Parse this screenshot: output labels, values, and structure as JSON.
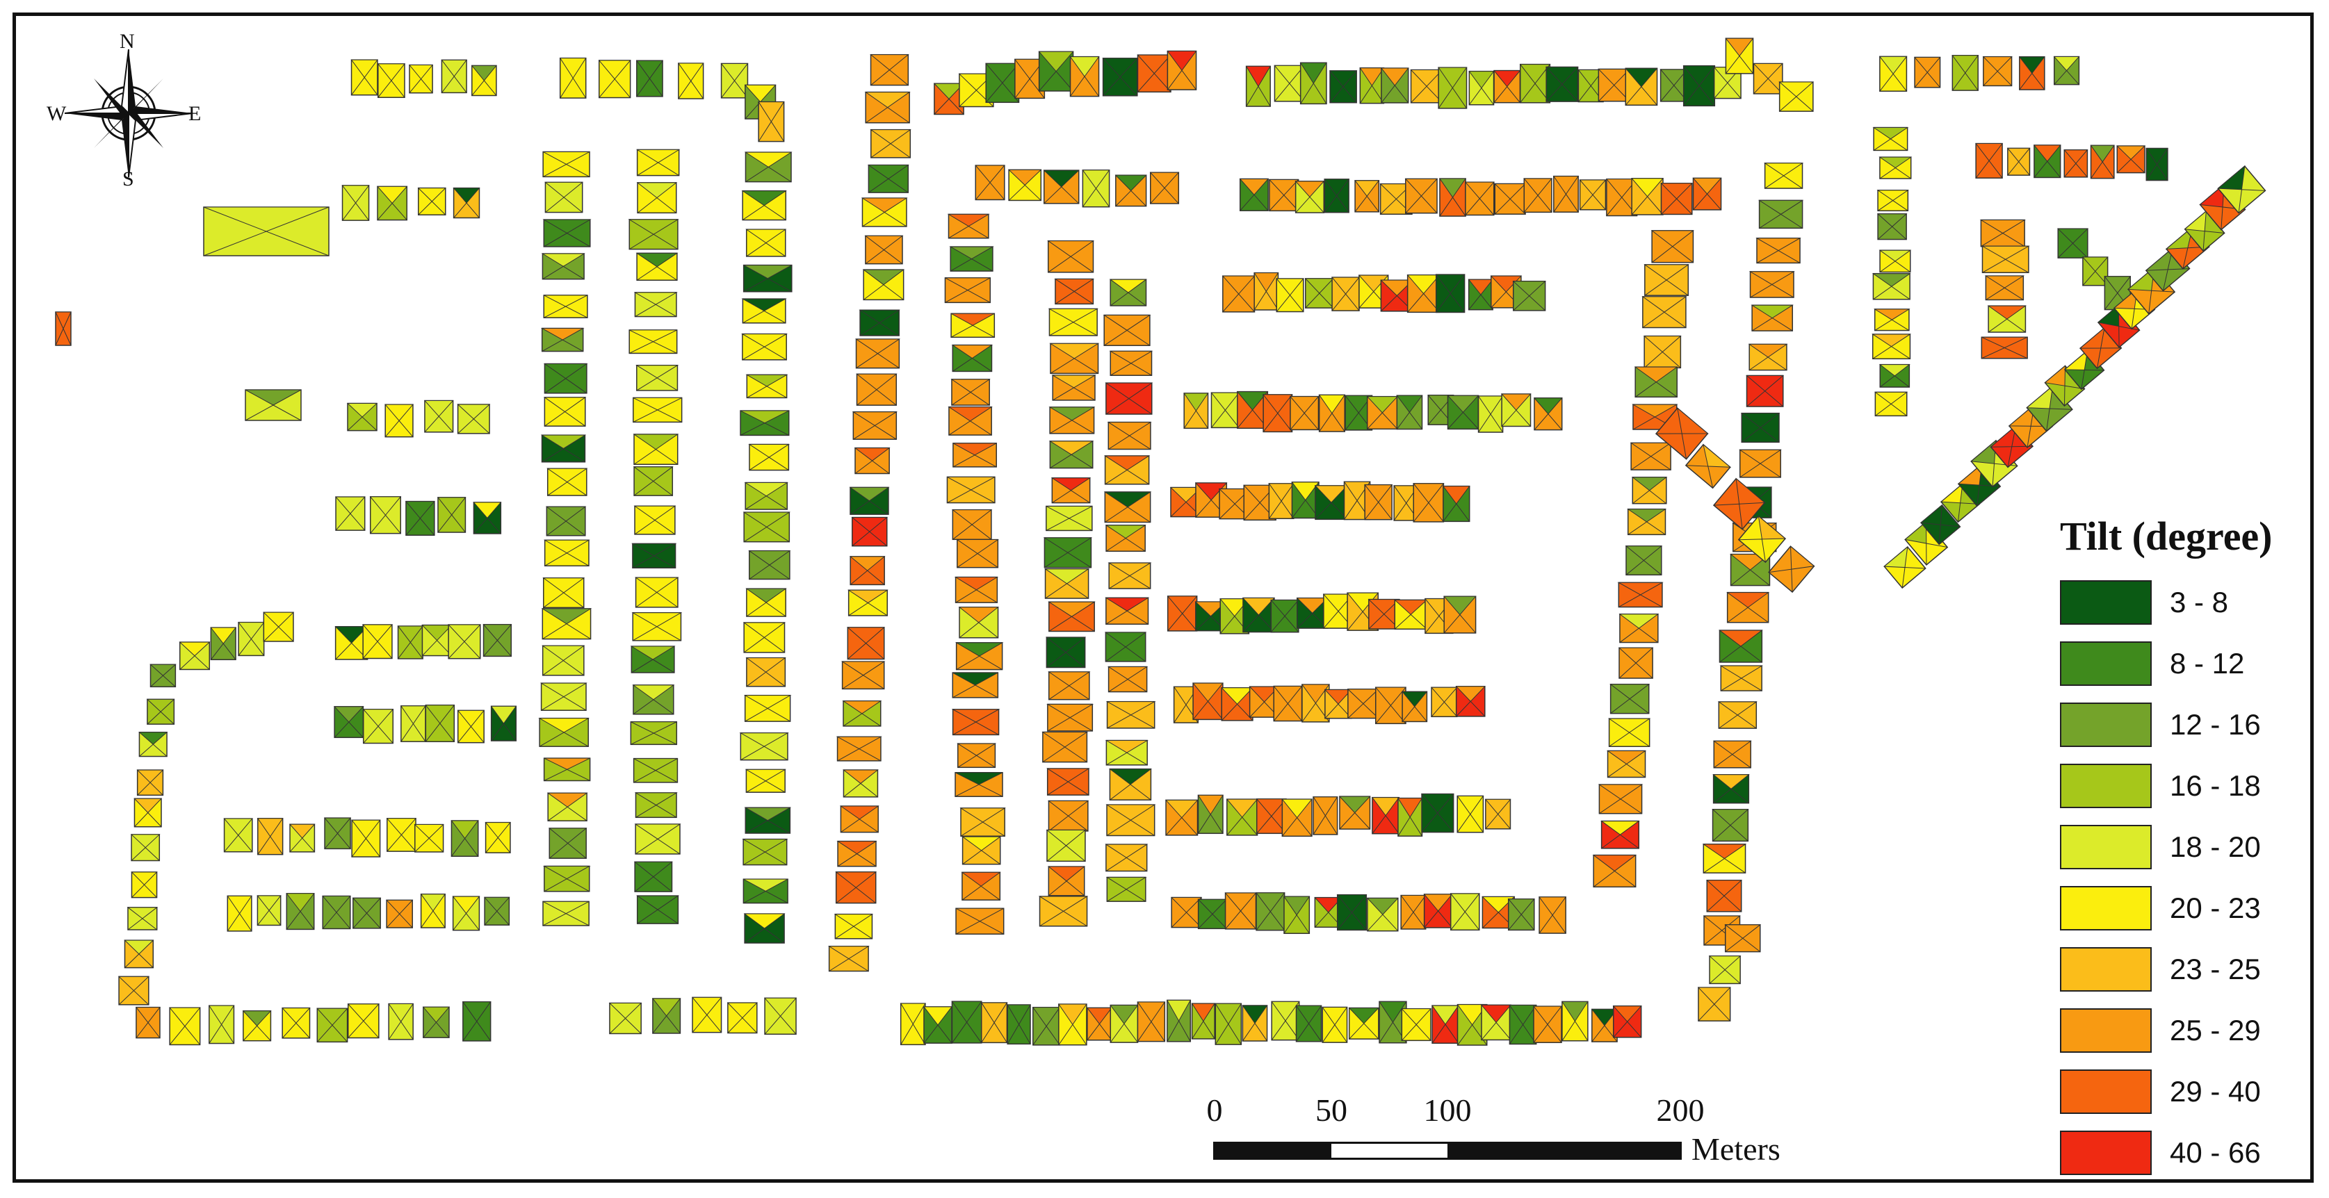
{
  "legend": {
    "title": "Tilt (degree)",
    "classes": [
      {
        "label": "3 - 8",
        "color": "#0b5a14"
      },
      {
        "label": "8 - 12",
        "color": "#3f8a1c"
      },
      {
        "label": "12 - 16",
        "color": "#74a32a"
      },
      {
        "label": "16 - 18",
        "color": "#a6c71a"
      },
      {
        "label": "18 - 20",
        "color": "#dceb2a"
      },
      {
        "label": "20 - 23",
        "color": "#fbee0d"
      },
      {
        "label": "23 - 25",
        "color": "#fbbd1a"
      },
      {
        "label": "25 - 29",
        "color": "#f89a12"
      },
      {
        "label": "29 - 40",
        "color": "#f5650f"
      },
      {
        "label": "40 - 66",
        "color": "#ef2a12"
      }
    ]
  },
  "scale_bar": {
    "ticks": [
      "0",
      "50",
      "100",
      "200"
    ],
    "units": "Meters"
  },
  "compass": {
    "n": "N",
    "s": "S",
    "e": "E",
    "w": "W",
    "icon": "compass-rose-icon"
  }
}
